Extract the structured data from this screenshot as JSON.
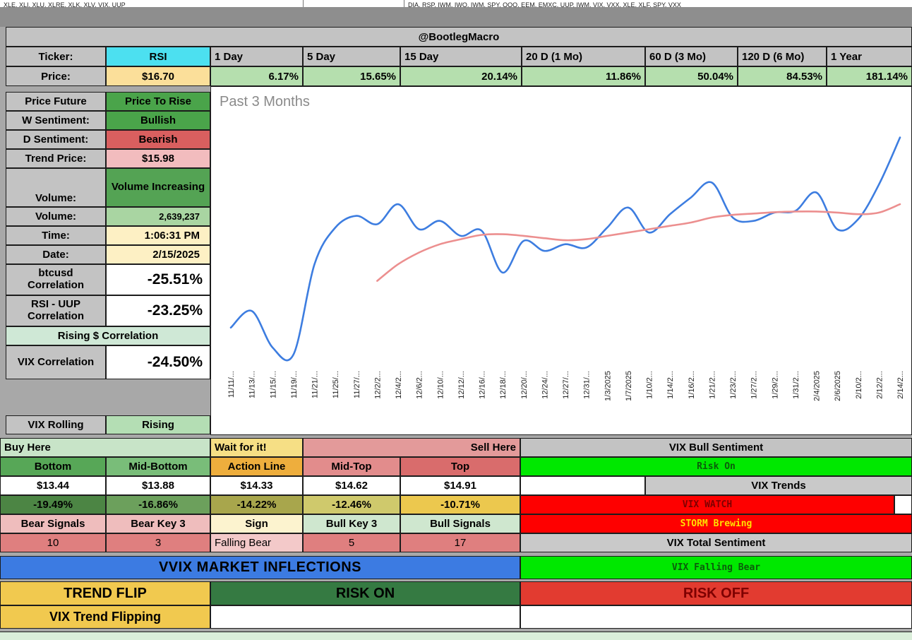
{
  "top_strip": {
    "left": "XLE, XLI, XLU, XLRE, XLK, XLV, VIX, UUP",
    "right": "DIA, RSP, IWM, IWO, IWM, SPY, QQQ, EEM, EMXC, UUP, IWM, VIX, VXX, XLE, XLF, SPY, VXX"
  },
  "header": {
    "title": "@BootlegMacro"
  },
  "info": {
    "ticker_label": "Ticker:",
    "ticker": "RSI",
    "price_label": "Price:",
    "price": "$16.70",
    "price_future_label": "Price Future",
    "price_future": "Price To Rise",
    "w_sentiment_label": "W Sentiment:",
    "w_sentiment": "Bullish",
    "d_sentiment_label": "D Sentiment:",
    "d_sentiment": "Bearish",
    "trend_price_label": "Trend Price:",
    "trend_price": "$15.98",
    "volume_state_label": "Volume:",
    "volume_state": "Volume Increasing",
    "volume_label": "Volume:",
    "volume": "2,639,237",
    "time_label": "Time:",
    "time": "1:06:31 PM",
    "date_label": "Date:",
    "date": "2/15/2025",
    "btcusd_label": "btcusd Correlation",
    "btcusd": "-25.51%",
    "rsi_uup_label": "RSI - UUP Correlation",
    "rsi_uup": "-23.25%",
    "rising_correlation": "Rising $ Correlation",
    "vix_corr_label": "VIX Correlation",
    "vix_corr": "-24.50%",
    "vix_rolling_label": "VIX Rolling",
    "vix_rolling": "Rising"
  },
  "performance": {
    "columns": [
      {
        "label": "1 Day",
        "value": "6.17%"
      },
      {
        "label": "5 Day",
        "value": "15.65%"
      },
      {
        "label": "15 Day",
        "value": "20.14%"
      },
      {
        "label": "20 D (1 Mo)",
        "value": "11.86%"
      },
      {
        "label": "60 D (3 Mo)",
        "value": "50.04%"
      },
      {
        "label": "120 D (6 Mo)",
        "value": "84.53%"
      },
      {
        "label": "1 Year",
        "value": "181.14%"
      }
    ]
  },
  "chart_data": {
    "type": "line",
    "title": "Past 3 Months",
    "xlabel": "",
    "ylabel": "",
    "ylim": [
      10,
      17.2
    ],
    "grid": false,
    "legend": "none",
    "x_labels": [
      "11/11/...",
      "11/13/...",
      "11/15/...",
      "11/19/...",
      "11/21/...",
      "11/25/...",
      "11/27/...",
      "12/2/2...",
      "12/4/2...",
      "12/6/2...",
      "12/10/...",
      "12/12/...",
      "12/16/...",
      "12/18/...",
      "12/20/...",
      "12/24/...",
      "12/27/...",
      "12/31/...",
      "1/3/2025",
      "1/7/2025",
      "1/10/2...",
      "1/14/2...",
      "1/16/2...",
      "1/21/2...",
      "1/23/2...",
      "1/27/2...",
      "1/29/2...",
      "1/31/2...",
      "2/4/2025",
      "2/6/2025",
      "2/10/2...",
      "2/12/2...",
      "2/14/2..."
    ],
    "series": [
      {
        "name": "price",
        "color": "#3d7de0",
        "values": [
          11.0,
          11.5,
          10.4,
          10.2,
          12.9,
          14.0,
          14.35,
          14.1,
          14.7,
          13.95,
          14.2,
          13.75,
          13.9,
          12.65,
          13.6,
          13.3,
          13.5,
          13.4,
          14.0,
          14.6,
          13.85,
          14.4,
          14.9,
          15.35,
          14.3,
          14.2,
          14.45,
          14.5,
          15.05,
          13.95,
          14.25,
          15.3,
          16.7
        ]
      },
      {
        "name": "moving-average",
        "color": "#ec8f8f",
        "values": [
          null,
          null,
          null,
          null,
          null,
          null,
          null,
          12.4,
          12.9,
          13.25,
          13.5,
          13.65,
          13.78,
          13.8,
          13.75,
          13.68,
          13.62,
          13.65,
          13.75,
          13.85,
          13.95,
          14.05,
          14.15,
          14.3,
          14.38,
          14.42,
          14.46,
          14.48,
          14.48,
          14.45,
          14.4,
          14.45,
          14.7
        ]
      }
    ]
  },
  "levels": {
    "buy_here": "Buy Here",
    "wait": "Wait for it!",
    "sell_here": "Sell Here",
    "headers": [
      "Bottom",
      "Mid-Bottom",
      "Action Line",
      "Mid-Top",
      "Top"
    ],
    "prices": [
      "$13.44",
      "$13.88",
      "$14.33",
      "$14.62",
      "$14.91"
    ],
    "percents": [
      "-19.49%",
      "-16.86%",
      "-14.22%",
      "-12.46%",
      "-10.71%"
    ],
    "signal_headers": [
      "Bear Signals",
      "Bear Key 3",
      "Sign",
      "Bull Key 3",
      "Bull Signals"
    ],
    "signals": [
      "10",
      "3",
      "Falling Bear",
      "5",
      "17"
    ]
  },
  "vix": {
    "bull_sentiment_label": "VIX Bull Sentiment",
    "risk_state": "Risk On",
    "trends_label": "VIX Trends",
    "watch": "VIX WATCH",
    "storm": "STORM Brewing",
    "total_sentiment_label": "VIX Total Sentiment",
    "falling_state": "VIX Falling Bear"
  },
  "banners": {
    "vvix": "VVIX MARKET INFLECTIONS",
    "trend_flip": "TREND FLIP",
    "risk_on": "RISK ON",
    "risk_off": "RISK OFF",
    "vix_trend_flipping": "VIX Trend Flipping"
  },
  "colors": {
    "ticker_bg": "#4ce0f0",
    "bullish_green": "#4aa44a",
    "bearish_red": "#d95f5f",
    "risk_on_green": "#00e800",
    "alert_red": "#fe0000",
    "banner_blue": "#3c7be2",
    "gold": "#f1c94f",
    "chart_line_blue": "#3d7de0",
    "chart_line_red": "#ec8f8f"
  }
}
